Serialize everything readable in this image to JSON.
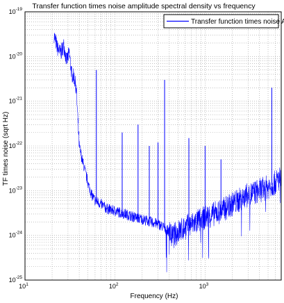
{
  "chart_data": {
    "type": "line",
    "title": "Transfer function times noise amplitude spectral density vs frequency",
    "xlabel": "Frequency (Hz)",
    "ylabel": "TF times noise (sqrt Hz)",
    "xscale": "log",
    "yscale": "log",
    "xlim": [
      10,
      7000
    ],
    "ylim": [
      1e-25,
      1e-19
    ],
    "grid": "on",
    "legend": {
      "placement": "top-right",
      "entries": [
        "Transfer function times noise ASD"
      ]
    },
    "x_ticks": [
      {
        "base": "10",
        "exp": "1",
        "value": 10
      },
      {
        "base": "10",
        "exp": "2",
        "value": 100
      },
      {
        "base": "10",
        "exp": "3",
        "value": 1000
      }
    ],
    "y_ticks": [
      {
        "base": "10",
        "exp": "-19",
        "value": 1e-19
      },
      {
        "base": "10",
        "exp": "-20",
        "value": 1e-20
      },
      {
        "base": "10",
        "exp": "-21",
        "value": 1e-21
      },
      {
        "base": "10",
        "exp": "-22",
        "value": 1e-22
      },
      {
        "base": "10",
        "exp": "-23",
        "value": 1e-23
      },
      {
        "base": "10",
        "exp": "-24",
        "value": 1e-24
      },
      {
        "base": "10",
        "exp": "-25",
        "value": 1e-25
      }
    ],
    "series": [
      {
        "name": "Transfer function times noise ASD",
        "color": "#0000ff",
        "x": [
          21,
          23,
          25,
          27,
          29,
          31,
          33,
          35,
          37,
          40,
          43,
          46,
          50,
          55,
          60,
          70,
          80,
          100,
          130,
          170,
          200,
          250,
          300,
          350,
          400,
          430,
          500,
          600,
          800,
          1000,
          1500,
          2000,
          3000,
          4000,
          5000,
          6000,
          7000
        ],
        "y": [
          3e-20,
          1.5e-20,
          1.2e-20,
          1.8e-20,
          8e-21,
          1.2e-20,
          4e-21,
          3.5e-21,
          2e-21,
          1e-22,
          5e-23,
          3e-23,
          1.5e-23,
          8e-24,
          6e-24,
          5e-24,
          4e-24,
          3.5e-24,
          3e-24,
          2.5e-24,
          2.3e-24,
          2e-24,
          1.8e-24,
          1.5e-24,
          1.2e-24,
          9e-25,
          1.2e-24,
          1.5e-24,
          2e-24,
          2.5e-24,
          3.5e-24,
          5e-24,
          8e-24,
          1e-23,
          1.2e-23,
          1.5e-23,
          2e-23
        ]
      }
    ],
    "spikes": [
      {
        "x": 62,
        "y": 5e-21
      },
      {
        "x": 120,
        "y": 2e-22
      },
      {
        "x": 180,
        "y": 3e-22
      },
      {
        "x": 240,
        "y": 1e-22
      },
      {
        "x": 300,
        "y": 1.2e-22
      },
      {
        "x": 355,
        "y": 3e-21
      },
      {
        "x": 660,
        "y": 1.5e-22
      },
      {
        "x": 1000,
        "y": 1e-22
      },
      {
        "x": 1500,
        "y": 5e-23
      },
      {
        "x": 5500,
        "y": 2e-21
      }
    ]
  }
}
